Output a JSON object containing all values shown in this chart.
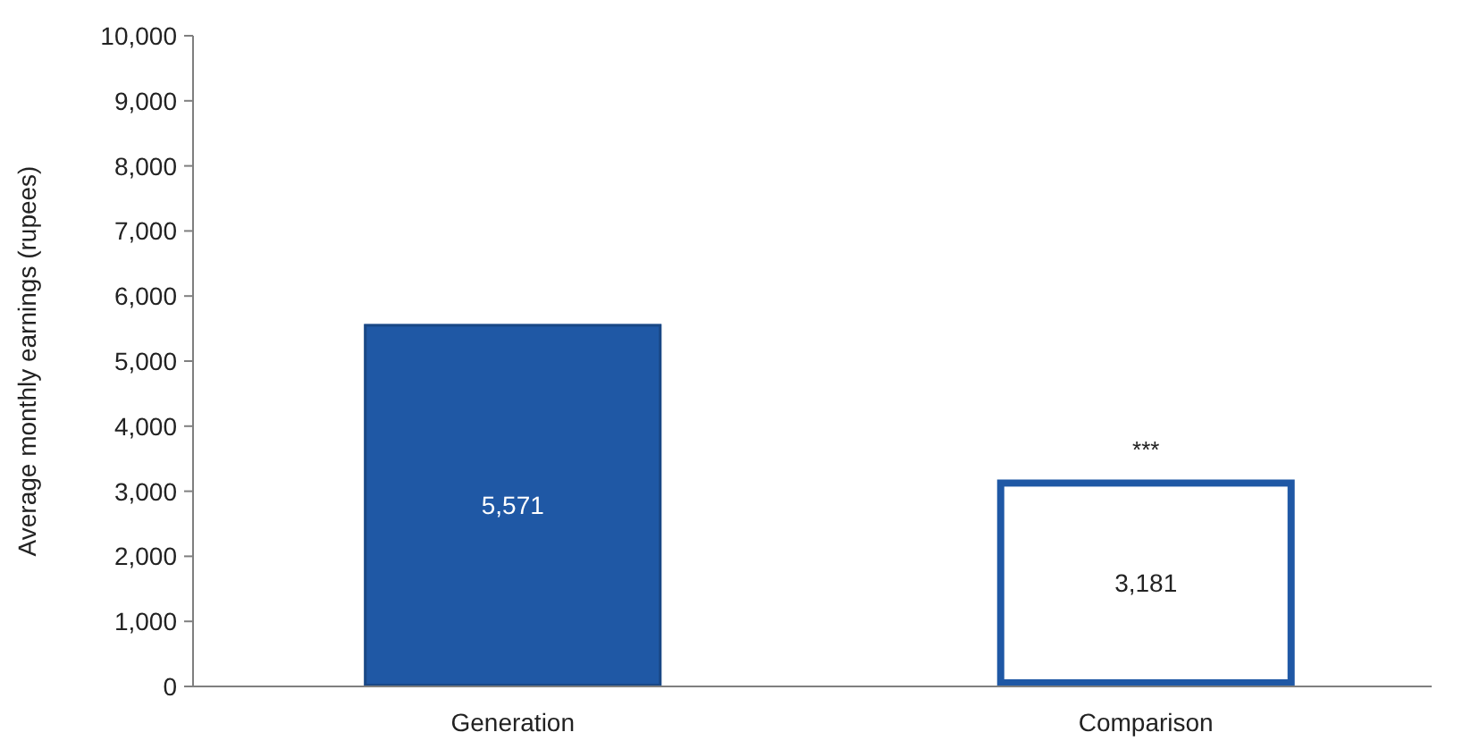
{
  "chart_data": {
    "type": "bar",
    "ylabel": "Average monthly earnings (rupees)",
    "categories": [
      "Generation",
      "Comparison"
    ],
    "values": [
      5571,
      3181
    ],
    "colors": [
      "#1f58a5",
      "#ffffff"
    ],
    "ylim": [
      0,
      10000
    ],
    "yticks": [
      {
        "value": 0,
        "label": "0"
      },
      {
        "value": 1000,
        "label": "1,000"
      },
      {
        "value": 2000,
        "label": "2,000"
      },
      {
        "value": 3000,
        "label": "3,000"
      },
      {
        "value": 4000,
        "label": "4,000"
      },
      {
        "value": 5000,
        "label": "5,000"
      },
      {
        "value": 6000,
        "label": "6,000"
      },
      {
        "value": 7000,
        "label": "7,000"
      },
      {
        "value": 8000,
        "label": "8,000"
      },
      {
        "value": 9000,
        "label": "9,000"
      },
      {
        "value": 10000,
        "label": "10,000"
      }
    ],
    "value_labels": [
      "5,571",
      "3,181"
    ],
    "annotations": [
      {
        "text": "***",
        "x": "Comparison",
        "y": 3181
      }
    ],
    "grid": false
  }
}
